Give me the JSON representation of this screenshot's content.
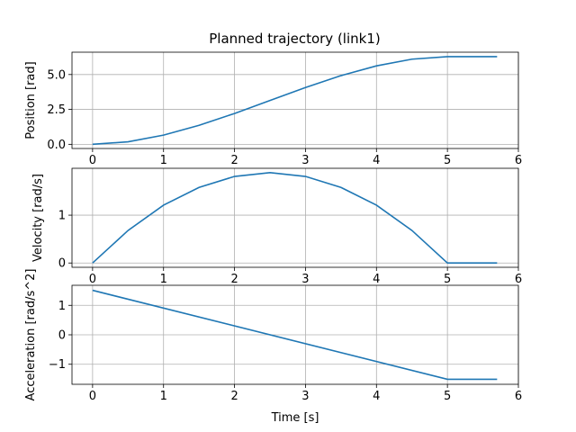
{
  "figure": {
    "title": "Planned trajectory (link1)",
    "xlabel": "Time [s]"
  },
  "chart_data": [
    {
      "type": "line",
      "title": "Planned trajectory (link1)",
      "xlabel": "",
      "ylabel": "Position [rad]",
      "xlim": [
        -0.29,
        6.0
      ],
      "ylim": [
        -0.3,
        6.6
      ],
      "xticks": [
        0,
        1,
        2,
        3,
        4,
        5,
        6
      ],
      "xtick_labels": [
        "0",
        "1",
        "2",
        "3",
        "4",
        "5",
        "6"
      ],
      "yticks": [
        0.0,
        2.5,
        5.0
      ],
      "ytick_labels": [
        "0.0",
        "2.5",
        "5.0"
      ],
      "grid": true,
      "color": "#1f77b4",
      "series": [
        {
          "x": [
            0,
            0.5,
            1.0,
            1.5,
            2.0,
            2.5,
            3.0,
            3.5,
            4.0,
            4.5,
            5.0,
            5.7
          ],
          "values": [
            0.0,
            0.18,
            0.66,
            1.36,
            2.21,
            3.14,
            4.07,
            4.92,
            5.62,
            6.1,
            6.28,
            6.28
          ]
        }
      ]
    },
    {
      "type": "line",
      "title": "",
      "xlabel": "",
      "ylabel": "Velocity [rad/s]",
      "xlim": [
        -0.29,
        6.0
      ],
      "ylim": [
        -0.09,
        1.98
      ],
      "xticks": [
        0,
        1,
        2,
        3,
        4,
        5,
        6
      ],
      "xtick_labels": [
        "0",
        "1",
        "2",
        "3",
        "4",
        "5",
        "6"
      ],
      "yticks": [
        0,
        1
      ],
      "ytick_labels": [
        "0",
        "1"
      ],
      "grid": true,
      "color": "#1f77b4",
      "series": [
        {
          "x": [
            0,
            0.5,
            1.0,
            1.5,
            2.0,
            2.5,
            3.0,
            3.5,
            4.0,
            4.5,
            5.0,
            5.7
          ],
          "values": [
            0.0,
            0.68,
            1.21,
            1.58,
            1.81,
            1.89,
            1.81,
            1.58,
            1.21,
            0.68,
            0.0,
            0.0
          ]
        }
      ]
    },
    {
      "type": "line",
      "title": "",
      "xlabel": "Time [s]",
      "ylabel": "Acceleration [rad/s^2]",
      "xlim": [
        -0.29,
        6.0
      ],
      "ylim": [
        -1.68,
        1.68
      ],
      "xticks": [
        0,
        1,
        2,
        3,
        4,
        5,
        6
      ],
      "xtick_labels": [
        "0",
        "1",
        "2",
        "3",
        "4",
        "5",
        "6"
      ],
      "yticks": [
        -1,
        0,
        1
      ],
      "ytick_labels": [
        "−1",
        "0",
        "1"
      ],
      "grid": true,
      "color": "#1f77b4",
      "series": [
        {
          "x": [
            0,
            5.0,
            5.0,
            5.7
          ],
          "values": [
            1.51,
            -1.51,
            -1.51,
            -1.51
          ]
        }
      ]
    }
  ]
}
